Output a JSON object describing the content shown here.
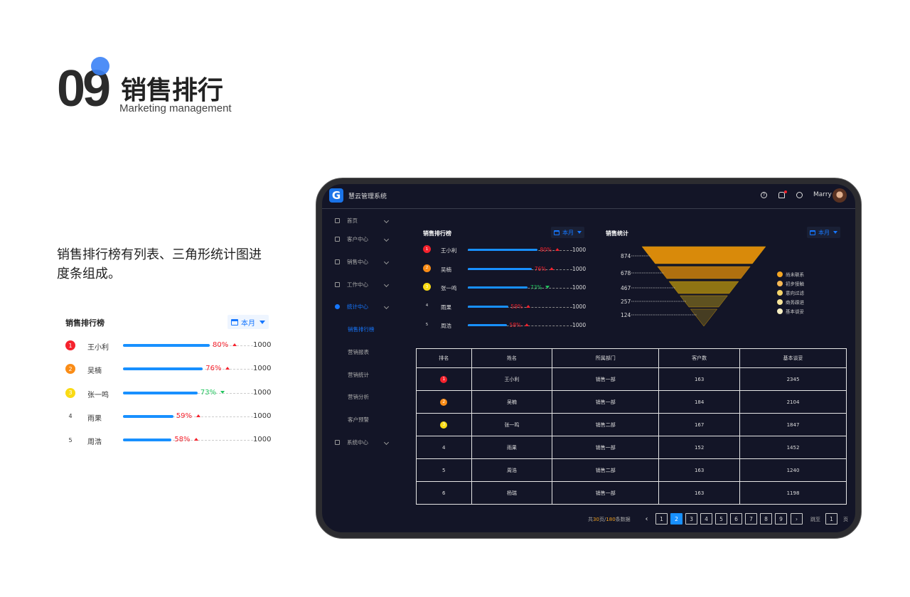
{
  "heading": {
    "number": "09",
    "title": "销售排行",
    "subtitle": "Marketing management"
  },
  "description": "销售排行榜有列表、三角形统计图进度条组成。",
  "widget": {
    "title": "销售排行榜",
    "dropdown": "本月",
    "total_label": "1000",
    "rows": [
      {
        "rank": "1",
        "name": "王小利",
        "percent": 80,
        "pct_label": "80%",
        "trend": "up",
        "rank_color": "#f5222d"
      },
      {
        "rank": "2",
        "name": "吴楠",
        "percent": 76,
        "pct_label": "76%",
        "trend": "up",
        "rank_color": "#fa8c16"
      },
      {
        "rank": "3",
        "name": "张一鸣",
        "percent": 73,
        "pct_label": "73%",
        "trend": "down",
        "rank_color": "#fadb14"
      },
      {
        "rank": "4",
        "name": "雨果",
        "percent": 59,
        "pct_label": "59%",
        "trend": "up",
        "rank_color": ""
      },
      {
        "rank": "5",
        "name": "周浩",
        "percent": 58,
        "pct_label": "58%",
        "trend": "up",
        "rank_color": ""
      }
    ]
  },
  "app": {
    "title": "慧云管理系统",
    "logo": "G",
    "user": "Marry",
    "header_icons": [
      "help-icon",
      "bell-icon",
      "power-icon"
    ],
    "sidebar": [
      {
        "label": "首页",
        "icon": "home-icon"
      },
      {
        "label": "客户中心",
        "icon": "user-icon"
      },
      {
        "label": "销售中心",
        "icon": "sales-icon"
      },
      {
        "label": "工作中心",
        "icon": "grid-icon"
      },
      {
        "label": "统计中心",
        "icon": "pie-icon",
        "active": true
      },
      {
        "label": "系统中心",
        "icon": "gear-icon"
      }
    ],
    "submenu": [
      {
        "label": "销售排行榜",
        "active": true
      },
      {
        "label": "营销报表"
      },
      {
        "label": "营销统计"
      },
      {
        "label": "营销分析"
      },
      {
        "label": "客户预警"
      }
    ],
    "funnel": {
      "title": "销售统计",
      "dropdown": "本月",
      "chart_data": {
        "type": "funnel",
        "values": [
          874,
          678,
          467,
          257,
          124
        ],
        "labels": [
          "874",
          "678",
          "467",
          "257",
          "124"
        ],
        "legend": [
          "尚未联系",
          "初步接触",
          "意向过滤",
          "商务跟进",
          "基本谈妥"
        ],
        "colors": [
          "#d98a0a",
          "#b0700f",
          "#8f7413",
          "#5f5220",
          "#463d22"
        ],
        "legend_colors": [
          "#f5a623",
          "#f7b955",
          "#f5d46a",
          "#f7e49a",
          "#f7efc4"
        ]
      }
    },
    "table": {
      "headers": [
        "排名",
        "姓名",
        "所属部门",
        "客户数",
        "基本谈妥"
      ],
      "rows": [
        [
          "1",
          "王小利",
          "销售一部",
          "163",
          "2345"
        ],
        [
          "2",
          "吴楠",
          "销售一部",
          "184",
          "2104"
        ],
        [
          "3",
          "张一鸣",
          "销售二部",
          "167",
          "1847"
        ],
        [
          "4",
          "雨果",
          "销售一部",
          "152",
          "1452"
        ],
        [
          "5",
          "周浩",
          "销售二部",
          "163",
          "1240"
        ],
        [
          "6",
          "杨瑞",
          "销售一部",
          "163",
          "1198"
        ]
      ]
    },
    "pagination": {
      "prefix": "共",
      "pages": "30",
      "mid": "页/",
      "records": "180",
      "suffix": "条数据",
      "buttons": [
        "1",
        "2",
        "3",
        "4",
        "5",
        "6",
        "7",
        "8",
        "9"
      ],
      "current": "2",
      "jump_label": "跳至",
      "jump_value": "1",
      "page_unit": "页"
    }
  }
}
